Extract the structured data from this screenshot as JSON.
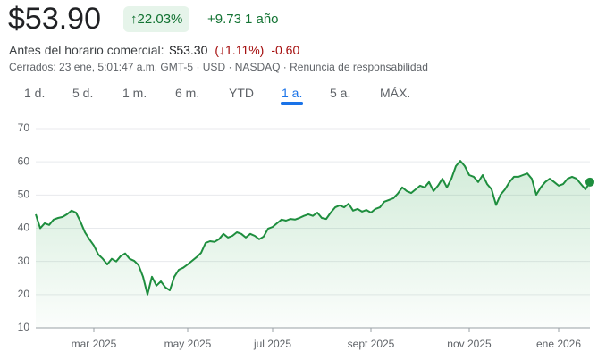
{
  "header": {
    "price": "$53.90",
    "change_percent": "↑22.03%",
    "change_value": "+9.73",
    "period": "1 año"
  },
  "premarket": {
    "label": "Antes del horario comercial:",
    "price": "$53.30",
    "change_percent": "(↓1.11%)",
    "change_value": "-0.60"
  },
  "status": "Cerrados: 23 ene, 5:01:47 a.m. GMT-5 · USD · NASDAQ · Renuncia de responsabilidad",
  "tabs": [
    "1 d.",
    "5 d.",
    "1 m.",
    "6 m.",
    "YTD",
    "1 a.",
    "5 a.",
    "MÁX."
  ],
  "selected_tab": 5,
  "chart_data": {
    "type": "line",
    "color": "#1e8e3e",
    "grid": true,
    "ylim": [
      10,
      70
    ],
    "yticks": [
      10,
      20,
      30,
      40,
      50,
      60,
      70
    ],
    "categories": [
      null,
      null,
      null,
      null,
      null,
      null,
      null,
      null,
      null,
      null,
      null,
      null,
      null,
      "mar 2025",
      null,
      null,
      null,
      null,
      null,
      null,
      null,
      null,
      null,
      null,
      null,
      null,
      null,
      null,
      null,
      null,
      null,
      null,
      null,
      null,
      "may 2025",
      null,
      null,
      null,
      null,
      null,
      null,
      null,
      null,
      null,
      null,
      null,
      null,
      null,
      null,
      null,
      null,
      null,
      null,
      "jul 2025",
      null,
      null,
      null,
      null,
      null,
      null,
      null,
      null,
      null,
      null,
      null,
      null,
      null,
      null,
      null,
      null,
      null,
      null,
      null,
      null,
      null,
      "sept 2025",
      null,
      null,
      null,
      null,
      null,
      null,
      null,
      null,
      null,
      null,
      null,
      null,
      null,
      null,
      null,
      null,
      null,
      null,
      null,
      null,
      null,
      "nov 2025",
      null,
      null,
      null,
      null,
      null,
      null,
      null,
      null,
      null,
      null,
      null,
      null,
      null,
      null,
      null,
      null,
      null,
      null,
      null,
      "ene 2026",
      null,
      null,
      null,
      null,
      null,
      null,
      null
    ],
    "values": [
      44.2,
      40,
      41.5,
      41,
      42.6,
      43.1,
      43.4,
      44.2,
      45.3,
      44.7,
      42,
      38.8,
      36.7,
      34.8,
      32.1,
      30.8,
      29.1,
      30.8,
      30,
      31.6,
      32.4,
      30.8,
      30.2,
      28.9,
      25.4,
      20,
      25.4,
      22.7,
      24,
      22.2,
      21.3,
      25.4,
      27.5,
      28.1,
      29.1,
      30.2,
      31.3,
      32.6,
      35.6,
      36.1,
      35.9,
      36.7,
      38.3,
      37.2,
      37.7,
      38.8,
      38.3,
      37.2,
      38.3,
      37.7,
      36.7,
      37.5,
      39.9,
      40.4,
      41.5,
      42.6,
      42.3,
      42.8,
      42.6,
      43.1,
      43.7,
      44.2,
      43.7,
      44.7,
      43.1,
      42.8,
      44.7,
      46.3,
      46.9,
      46.3,
      47.4,
      45.3,
      45.8,
      45,
      45.5,
      44.7,
      45.8,
      46.3,
      48,
      48.5,
      49,
      50.4,
      52.3,
      51.2,
      50.6,
      51.7,
      52.8,
      52.3,
      53.9,
      51.2,
      52.8,
      54.9,
      52.3,
      54.9,
      58.7,
      60.3,
      58.7,
      56,
      55.5,
      53.9,
      56,
      53.3,
      51.7,
      47,
      50.1,
      51.7,
      53.9,
      55.5,
      55.5,
      56,
      56.5,
      54.9,
      50.1,
      52.3,
      53.9,
      54.9,
      53.9,
      52.8,
      53.3,
      54.9,
      55.5,
      54.9,
      53.3,
      51.7,
      53.9
    ]
  }
}
